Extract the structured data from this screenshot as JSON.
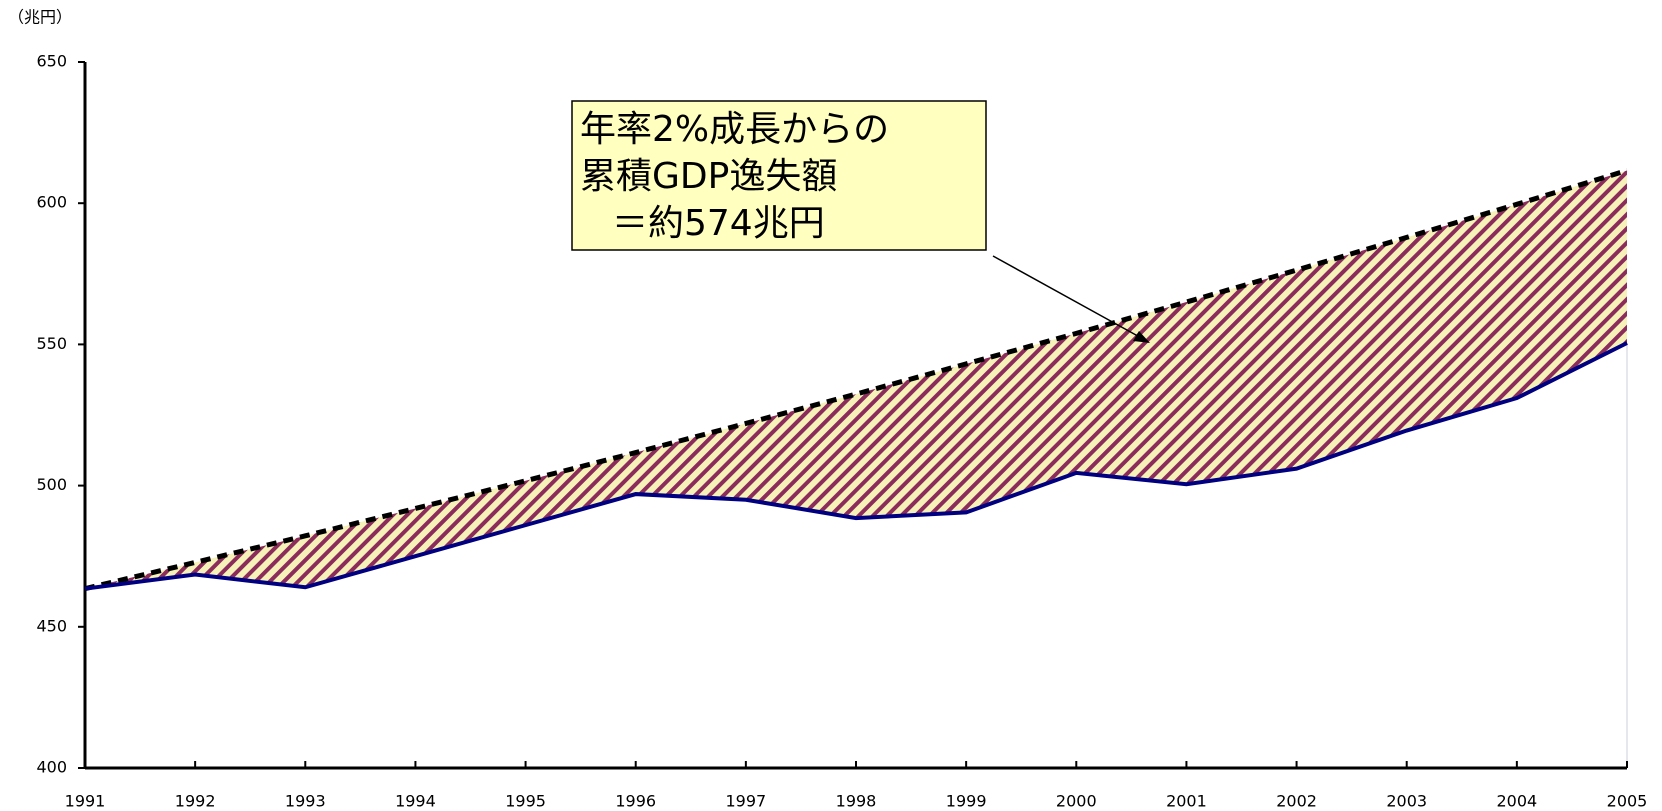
{
  "chart_data": {
    "type": "line",
    "y_unit_label": "（兆円）",
    "annotation": [
      "年率2%成長からの",
      "累積GDP逸失額",
      "＝約574兆円"
    ],
    "annotation_color": "#ffffc0",
    "x": [
      1991,
      1992,
      1993,
      1994,
      1995,
      1996,
      1997,
      1998,
      1999,
      2000,
      2001,
      2002,
      2003,
      2004,
      2005
    ],
    "xlim": [
      1991,
      2005
    ],
    "xticks": [
      1991,
      1992,
      1993,
      1994,
      1995,
      1996,
      1997,
      1998,
      1999,
      2000,
      2001,
      2002,
      2003,
      2004,
      2005
    ],
    "ylim": [
      400,
      650
    ],
    "yticks": [
      400,
      450,
      500,
      550,
      600,
      650
    ],
    "fill_between": true,
    "hatch_colors": [
      "#8b2c5a",
      "#f6f1b9"
    ],
    "series": [
      {
        "color": "#000000",
        "dashed": true,
        "values": [
          463.5,
          472.8,
          482.2,
          491.9,
          501.7,
          511.7,
          522.0,
          532.4,
          543.1,
          553.9,
          565.0,
          576.3,
          587.9,
          599.6,
          611.6
        ]
      },
      {
        "color": "#000080",
        "dashed": false,
        "values": [
          463.5,
          468.5,
          464,
          475,
          486,
          497,
          495,
          488.5,
          490.5,
          504.5,
          500.5,
          506,
          519.5,
          531,
          550.5
        ]
      }
    ]
  }
}
